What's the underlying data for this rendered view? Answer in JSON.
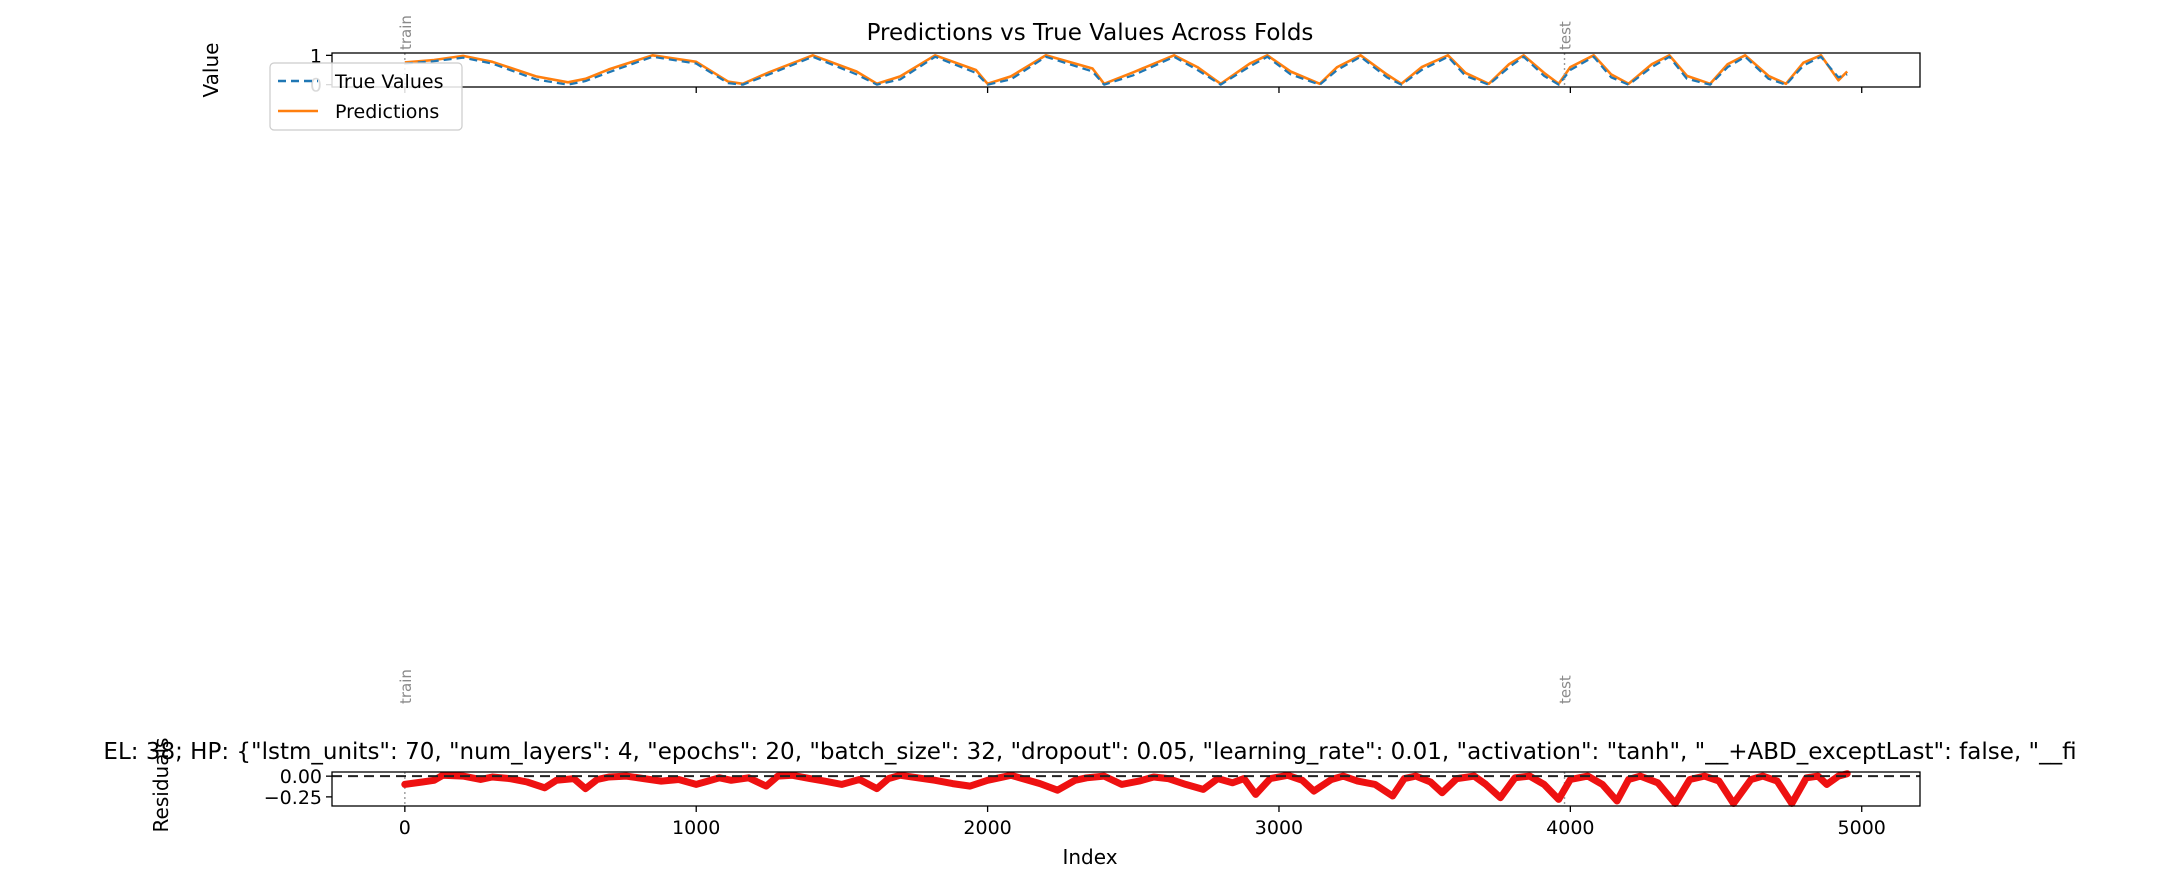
{
  "figure": {
    "colors": {
      "true_values": "#1f77b4",
      "predictions": "#ff7f0e",
      "residuals": "#ee1111",
      "split_line": "#9a9a9a",
      "split_text": "#8a8a8a",
      "axes": "#000000",
      "zero_line": "#222222"
    }
  },
  "chart_data": [
    {
      "type": "line",
      "title": "Predictions vs True Values Across Folds",
      "xlabel": "",
      "ylabel": "Value",
      "xlim": [
        -250,
        5200
      ],
      "ylim": [
        -0.08,
        1.08
      ],
      "yticks": [
        0,
        1
      ],
      "ytick_labels": [
        "0",
        "1"
      ],
      "xticks": [
        0,
        1000,
        2000,
        3000,
        4000,
        5000
      ],
      "split_markers": [
        {
          "x": 0,
          "label": "train"
        },
        {
          "x": 3980,
          "label": "test"
        }
      ],
      "legend": {
        "location": "upper-left",
        "entries": [
          {
            "label": "True Values",
            "style": "dashed",
            "color": "#1f77b4"
          },
          {
            "label": "Predictions",
            "style": "solid",
            "color": "#ff7f0e"
          }
        ]
      },
      "series": [
        {
          "name": "True Values",
          "style": "dashed",
          "x": [
            0,
            100,
            200,
            300,
            450,
            560,
            620,
            700,
            850,
            1000,
            1110,
            1160,
            1250,
            1400,
            1550,
            1620,
            1700,
            1820,
            1960,
            2000,
            2080,
            2200,
            2360,
            2400,
            2500,
            2640,
            2720,
            2800,
            2900,
            2960,
            3040,
            3140,
            3200,
            3280,
            3370,
            3420,
            3490,
            3580,
            3640,
            3720,
            3790,
            3840,
            3910,
            3960,
            4000,
            4080,
            4140,
            4200,
            4280,
            4340,
            4400,
            4480,
            4540,
            4600,
            4680,
            4740,
            4800,
            4860,
            4920,
            4950
          ],
          "y": [
            0.72,
            0.8,
            0.92,
            0.72,
            0.18,
            0.0,
            0.12,
            0.42,
            0.95,
            0.72,
            0.05,
            0.0,
            0.35,
            0.95,
            0.35,
            0.0,
            0.18,
            0.95,
            0.4,
            0.0,
            0.18,
            0.95,
            0.45,
            0.0,
            0.32,
            0.95,
            0.5,
            0.0,
            0.62,
            0.95,
            0.35,
            0.0,
            0.5,
            0.95,
            0.25,
            0.0,
            0.5,
            0.95,
            0.3,
            0.0,
            0.6,
            0.95,
            0.3,
            0.0,
            0.5,
            0.95,
            0.25,
            0.0,
            0.6,
            0.95,
            0.2,
            0.0,
            0.6,
            0.95,
            0.2,
            0.0,
            0.65,
            0.95,
            0.25,
            0.35
          ]
        },
        {
          "name": "Predictions",
          "style": "solid",
          "x": [
            0,
            100,
            200,
            300,
            450,
            560,
            620,
            700,
            850,
            1000,
            1110,
            1160,
            1250,
            1400,
            1550,
            1620,
            1700,
            1820,
            1960,
            2000,
            2080,
            2200,
            2360,
            2400,
            2500,
            2640,
            2720,
            2800,
            2900,
            2960,
            3040,
            3140,
            3200,
            3280,
            3370,
            3420,
            3490,
            3580,
            3640,
            3720,
            3790,
            3840,
            3910,
            3960,
            4000,
            4080,
            4140,
            4200,
            4280,
            4340,
            4400,
            4480,
            4540,
            4600,
            4680,
            4740,
            4800,
            4860,
            4920,
            4950
          ],
          "y": [
            0.76,
            0.84,
            0.98,
            0.78,
            0.28,
            0.08,
            0.2,
            0.52,
            1.0,
            0.78,
            0.1,
            0.03,
            0.42,
            1.0,
            0.45,
            0.03,
            0.28,
            1.0,
            0.5,
            0.03,
            0.28,
            1.0,
            0.55,
            0.03,
            0.42,
            1.0,
            0.6,
            0.03,
            0.72,
            1.0,
            0.45,
            0.03,
            0.6,
            1.0,
            0.35,
            0.03,
            0.6,
            1.0,
            0.4,
            0.03,
            0.7,
            1.0,
            0.4,
            0.03,
            0.6,
            1.0,
            0.35,
            0.03,
            0.7,
            1.0,
            0.3,
            0.03,
            0.7,
            1.0,
            0.3,
            0.03,
            0.75,
            1.0,
            0.15,
            0.45
          ]
        }
      ]
    },
    {
      "type": "line",
      "title": "EL: 38; HP: {\"lstm_units\": 70, \"num_layers\": 4, \"epochs\": 20, \"batch_size\": 32, \"dropout\": 0.05, \"learning_rate\": 0.01, \"activation\": \"tanh\", \"__+ABD_exceptLast\": false, \"__fi",
      "xlabel": "Index",
      "ylabel": "Residuals",
      "xlim": [
        -250,
        5200
      ],
      "ylim": [
        -0.36,
        0.05
      ],
      "yticks": [
        0.0,
        -0.25
      ],
      "ytick_labels": [
        "0.00",
        "−0.25"
      ],
      "xticks": [
        0,
        1000,
        2000,
        3000,
        4000,
        5000
      ],
      "xtick_labels": [
        "0",
        "1000",
        "2000",
        "3000",
        "4000",
        "5000"
      ],
      "reference_line": {
        "y": 0.0,
        "style": "dashed"
      },
      "split_markers": [
        {
          "x": 0,
          "label": "train"
        },
        {
          "x": 3980,
          "label": "test"
        }
      ],
      "series": [
        {
          "name": "Residuals",
          "x": [
            0,
            60,
            100,
            130,
            200,
            260,
            300,
            360,
            420,
            480,
            520,
            580,
            620,
            660,
            700,
            760,
            820,
            880,
            940,
            1000,
            1040,
            1080,
            1120,
            1180,
            1240,
            1280,
            1330,
            1390,
            1440,
            1500,
            1560,
            1620,
            1660,
            1700,
            1760,
            1820,
            1880,
            1940,
            2000,
            2040,
            2080,
            2120,
            2180,
            2240,
            2300,
            2340,
            2400,
            2460,
            2520,
            2570,
            2620,
            2680,
            2740,
            2790,
            2840,
            2880,
            2920,
            2970,
            3030,
            3080,
            3120,
            3180,
            3220,
            3270,
            3330,
            3390,
            3430,
            3470,
            3520,
            3560,
            3610,
            3670,
            3710,
            3760,
            3810,
            3860,
            3910,
            3960,
            4000,
            4060,
            4110,
            4160,
            4200,
            4240,
            4300,
            4360,
            4410,
            4460,
            4510,
            4560,
            4620,
            4660,
            4710,
            4760,
            4810,
            4850,
            4880,
            4920,
            4950
          ],
          "y": [
            -0.1,
            -0.07,
            -0.05,
            0.01,
            0.0,
            -0.04,
            -0.01,
            -0.03,
            -0.07,
            -0.14,
            -0.05,
            -0.03,
            -0.15,
            -0.04,
            -0.01,
            0.0,
            -0.03,
            -0.06,
            -0.04,
            -0.1,
            -0.06,
            -0.02,
            -0.05,
            -0.02,
            -0.12,
            0.0,
            0.01,
            -0.03,
            -0.06,
            -0.1,
            -0.04,
            -0.15,
            -0.03,
            0.01,
            -0.02,
            -0.05,
            -0.09,
            -0.12,
            -0.05,
            -0.02,
            0.01,
            -0.03,
            -0.09,
            -0.17,
            -0.05,
            -0.02,
            0.0,
            -0.1,
            -0.06,
            -0.01,
            -0.03,
            -0.1,
            -0.16,
            -0.03,
            -0.08,
            -0.03,
            -0.22,
            -0.03,
            0.01,
            -0.05,
            -0.18,
            -0.04,
            0.0,
            -0.06,
            -0.1,
            -0.24,
            -0.03,
            0.0,
            -0.07,
            -0.2,
            -0.03,
            0.0,
            -0.1,
            -0.26,
            -0.02,
            0.0,
            -0.1,
            -0.28,
            -0.04,
            0.0,
            -0.1,
            -0.3,
            -0.04,
            0.0,
            -0.08,
            -0.33,
            -0.04,
            0.0,
            -0.06,
            -0.33,
            -0.04,
            0.0,
            -0.06,
            -0.33,
            -0.02,
            0.0,
            -0.1,
            0.0,
            0.03
          ]
        }
      ]
    }
  ]
}
